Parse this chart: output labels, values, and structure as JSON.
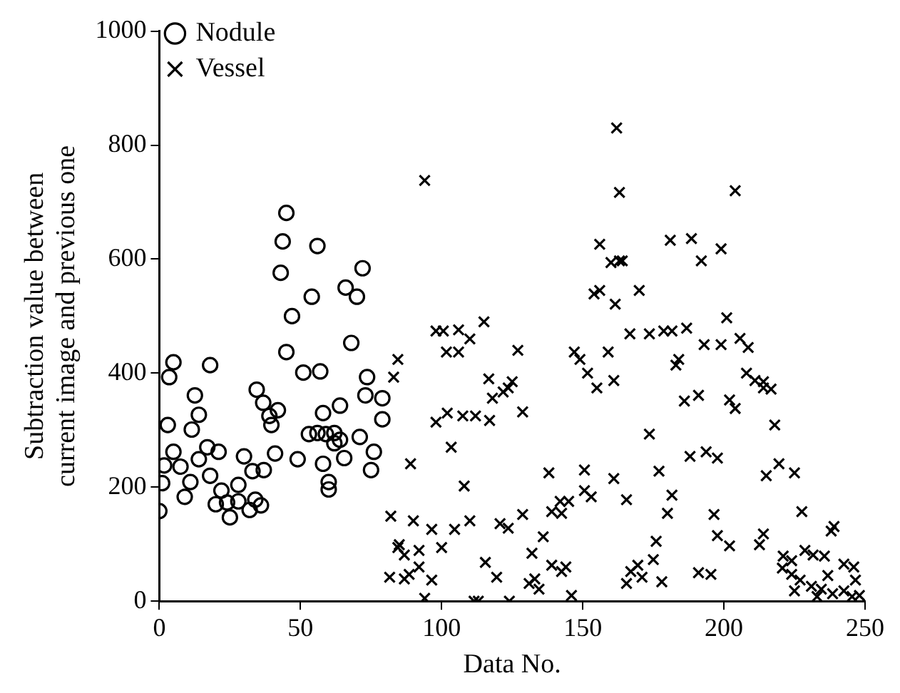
{
  "chart_data": {
    "type": "scatter",
    "xlabel": "Data No.",
    "ylabel": "Subtraction value between current image and previous one",
    "xlim": [
      0,
      250
    ],
    "xticks": [
      0,
      50,
      100,
      150,
      200,
      250
    ],
    "ylim": [
      0,
      1000
    ],
    "yticks": [
      0,
      200,
      400,
      600,
      800,
      1000
    ],
    "grid": false,
    "legend": "top left",
    "series": [
      {
        "name": "Nodule",
        "color": "#000000",
        "marker": "circle",
        "x": [
          0,
          45,
          43.7,
          56,
          43,
          72,
          66,
          70,
          54,
          47,
          68,
          45,
          5,
          3.5,
          18,
          51,
          57,
          73.6,
          73,
          79,
          12.6,
          34.5,
          36.8,
          39,
          42,
          39.7,
          64,
          58,
          3,
          14,
          11.5,
          79,
          53,
          56,
          59,
          62,
          71,
          17,
          21,
          5,
          14,
          1.7,
          7.5,
          30,
          41,
          62,
          64,
          76,
          49,
          65.5,
          58,
          75,
          33,
          37,
          18,
          1,
          11,
          28,
          22,
          60,
          60,
          9,
          20,
          24,
          28,
          34,
          36,
          32,
          25
        ],
        "values": [
          158,
          681,
          631,
          623,
          576,
          584,
          550,
          534,
          534,
          500,
          453,
          437,
          419,
          393,
          414,
          401,
          403,
          393,
          361,
          356,
          361,
          371,
          348,
          325,
          335,
          309,
          343,
          330,
          309,
          327,
          301,
          319,
          293,
          295,
          293,
          295,
          288,
          270,
          262,
          262,
          249,
          238,
          236,
          254,
          259,
          277,
          283,
          262,
          249,
          251,
          241,
          230,
          228,
          230,
          220,
          207,
          209,
          204,
          194,
          209,
          196,
          183,
          170,
          173,
          175,
          178,
          168,
          160,
          147
        ]
      },
      {
        "name": "Vessel",
        "color": "#000000",
        "marker": "cross",
        "x": [
          84.5,
          83,
          82,
          84.5,
          81.6,
          94,
          98,
          100.6,
          106,
          115,
          110,
          101.7,
          106,
          127,
          116.7,
          125,
          123.6,
          121.8,
          118,
          128.7,
          98,
          102,
          107.5,
          112,
          117,
          103.4,
          89,
          108,
          90,
          96.5,
          104.6,
          110,
          120.7,
          123.6,
          128.7,
          85,
          86.8,
          92,
          100,
          86.8,
          88.5,
          92,
          96.5,
          94,
          111.5,
          113,
          124,
          115.5,
          119.5,
          131,
          133,
          134.5,
          132,
          136,
          139,
          142,
          145,
          142.5,
          138,
          150.6,
          150.6,
          153,
          139,
          142.5,
          144,
          146,
          147,
          149,
          151.7,
          155,
          159,
          161,
          156,
          154,
          156,
          161.5,
          162,
          163,
          160,
          163,
          204,
          181,
          188.5,
          192,
          199,
          164,
          170,
          201,
          166.7,
          173.6,
          178.7,
          181.6,
          186.8,
          193,
          199,
          205.7,
          208.6,
          184,
          183,
          208,
          211,
          214,
          216.7,
          214,
          186,
          191,
          202,
          204,
          173.6,
          218,
          188,
          193.7,
          197.7,
          161,
          177,
          165.5,
          181.6,
          180,
          215,
          219.5,
          225,
          196.5,
          227.6,
          176,
          197.7,
          202,
          214,
          212.6,
          239,
          238,
          175,
          169.5,
          167,
          171,
          165.5,
          178,
          191,
          195.4,
          221,
          224,
          228.7,
          231.6,
          235.6,
          242.5,
          246,
          220.7,
          224,
          227,
          231,
          234.5,
          238.5,
          242.5,
          245.4,
          246.6,
          225,
          233,
          236.8,
          248
        ],
        "values": [
          424,
          393,
          149,
          94,
          42,
          738,
          474,
          474,
          476,
          490,
          460,
          437,
          437,
          440,
          390,
          385,
          374,
          367,
          356,
          332,
          314,
          330,
          325,
          325,
          317,
          270,
          241,
          202,
          141,
          126,
          126,
          141,
          136,
          128,
          152,
          99,
          81,
          89,
          94,
          39,
          47,
          60,
          37,
          5,
          0,
          0,
          0,
          68,
          42,
          31,
          39,
          21,
          84,
          113,
          157,
          175,
          175,
          154,
          225,
          230,
          194,
          183,
          63,
          52,
          60,
          10,
          437,
          424,
          400,
          374,
          437,
          387,
          626,
          539,
          545,
          521,
          830,
          717,
          594,
          597,
          720,
          633,
          636,
          597,
          618,
          597,
          545,
          497,
          469,
          469,
          474,
          474,
          479,
          450,
          450,
          461,
          445,
          424,
          414,
          400,
          387,
          385,
          372,
          374,
          351,
          361,
          353,
          338,
          293,
          309,
          254,
          262,
          251,
          215,
          228,
          178,
          186,
          154,
          220,
          241,
          225,
          152,
          157,
          105,
          115,
          97,
          118,
          99,
          131,
          123,
          73,
          63,
          52,
          42,
          31,
          34,
          50,
          47,
          79,
          71,
          89,
          81,
          79,
          65,
          60,
          58,
          47,
          37,
          26,
          21,
          13,
          18,
          8,
          37,
          18,
          8,
          45,
          10
        ]
      }
    ]
  }
}
